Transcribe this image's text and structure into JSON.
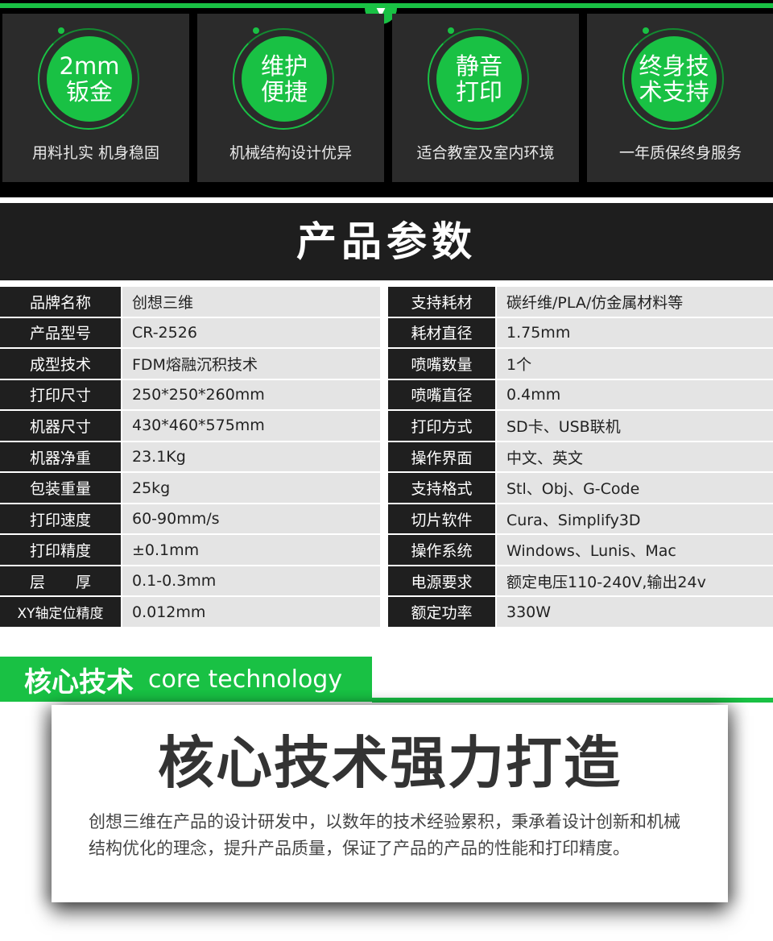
{
  "features": [
    {
      "line1": "2mm",
      "line2": "钣金",
      "caption": "用料扎实 机身稳固"
    },
    {
      "line1": "维护",
      "line2": "便捷",
      "caption": "机械结构设计优异"
    },
    {
      "line1": "静音",
      "line2": "打印",
      "caption": "适合教室及室内环境"
    },
    {
      "line1": "终身技",
      "line2": "术支持",
      "caption": "一年质保终身服务"
    }
  ],
  "params_title": "产品参数",
  "params_left": [
    {
      "label": "品牌名称",
      "value": "创想三维"
    },
    {
      "label": "产品型号",
      "value": "CR-2526"
    },
    {
      "label": "成型技术",
      "value": "FDM熔融沉积技术"
    },
    {
      "label": "打印尺寸",
      "value": "250*250*260mm"
    },
    {
      "label": "机器尺寸",
      "value": "430*460*575mm"
    },
    {
      "label": "机器净重",
      "value": "23.1Kg"
    },
    {
      "label": "包装重量",
      "value": "25kg"
    },
    {
      "label": "打印速度",
      "value": "60-90mm/s"
    },
    {
      "label": "打印精度",
      "value": "±0.1mm"
    },
    {
      "label": "层　　厚",
      "value": "0.1-0.3mm"
    },
    {
      "label": "XY轴定位精度",
      "value": "0.012mm"
    }
  ],
  "params_right": [
    {
      "label": "支持耗材",
      "value": "碳纤维/PLA/仿金属材料等"
    },
    {
      "label": "耗材直径",
      "value": "1.75mm"
    },
    {
      "label": "喷嘴数量",
      "value": "1个"
    },
    {
      "label": "喷嘴直径",
      "value": "0.4mm"
    },
    {
      "label": "打印方式",
      "value": "SD卡、USB联机"
    },
    {
      "label": "操作界面",
      "value": "中文、英文"
    },
    {
      "label": "支持格式",
      "value": "Stl、Obj、G-Code"
    },
    {
      "label": "切片软件",
      "value": "Cura、Simplify3D"
    },
    {
      "label": "操作系统",
      "value": "Windows、Lunis、Mac"
    },
    {
      "label": "电源要求",
      "value": "额定电压110-240V,输出24v"
    },
    {
      "label": "额定功率",
      "value": "330W"
    }
  ],
  "core": {
    "title_cn": "核心技术",
    "title_en": "core technology",
    "heading": "核心技术强力打造",
    "body": "创想三维在产品的设计研发中，以数年的技术经验累积，秉承着设计创新和机械结构优化的理念，提升产品质量，保证了产品的产品的性能和打印精度。"
  },
  "colors": {
    "accent": "#19c144",
    "dark": "#1f1f1f"
  },
  "icons": {
    "arrow": "triangle-down-icon"
  }
}
